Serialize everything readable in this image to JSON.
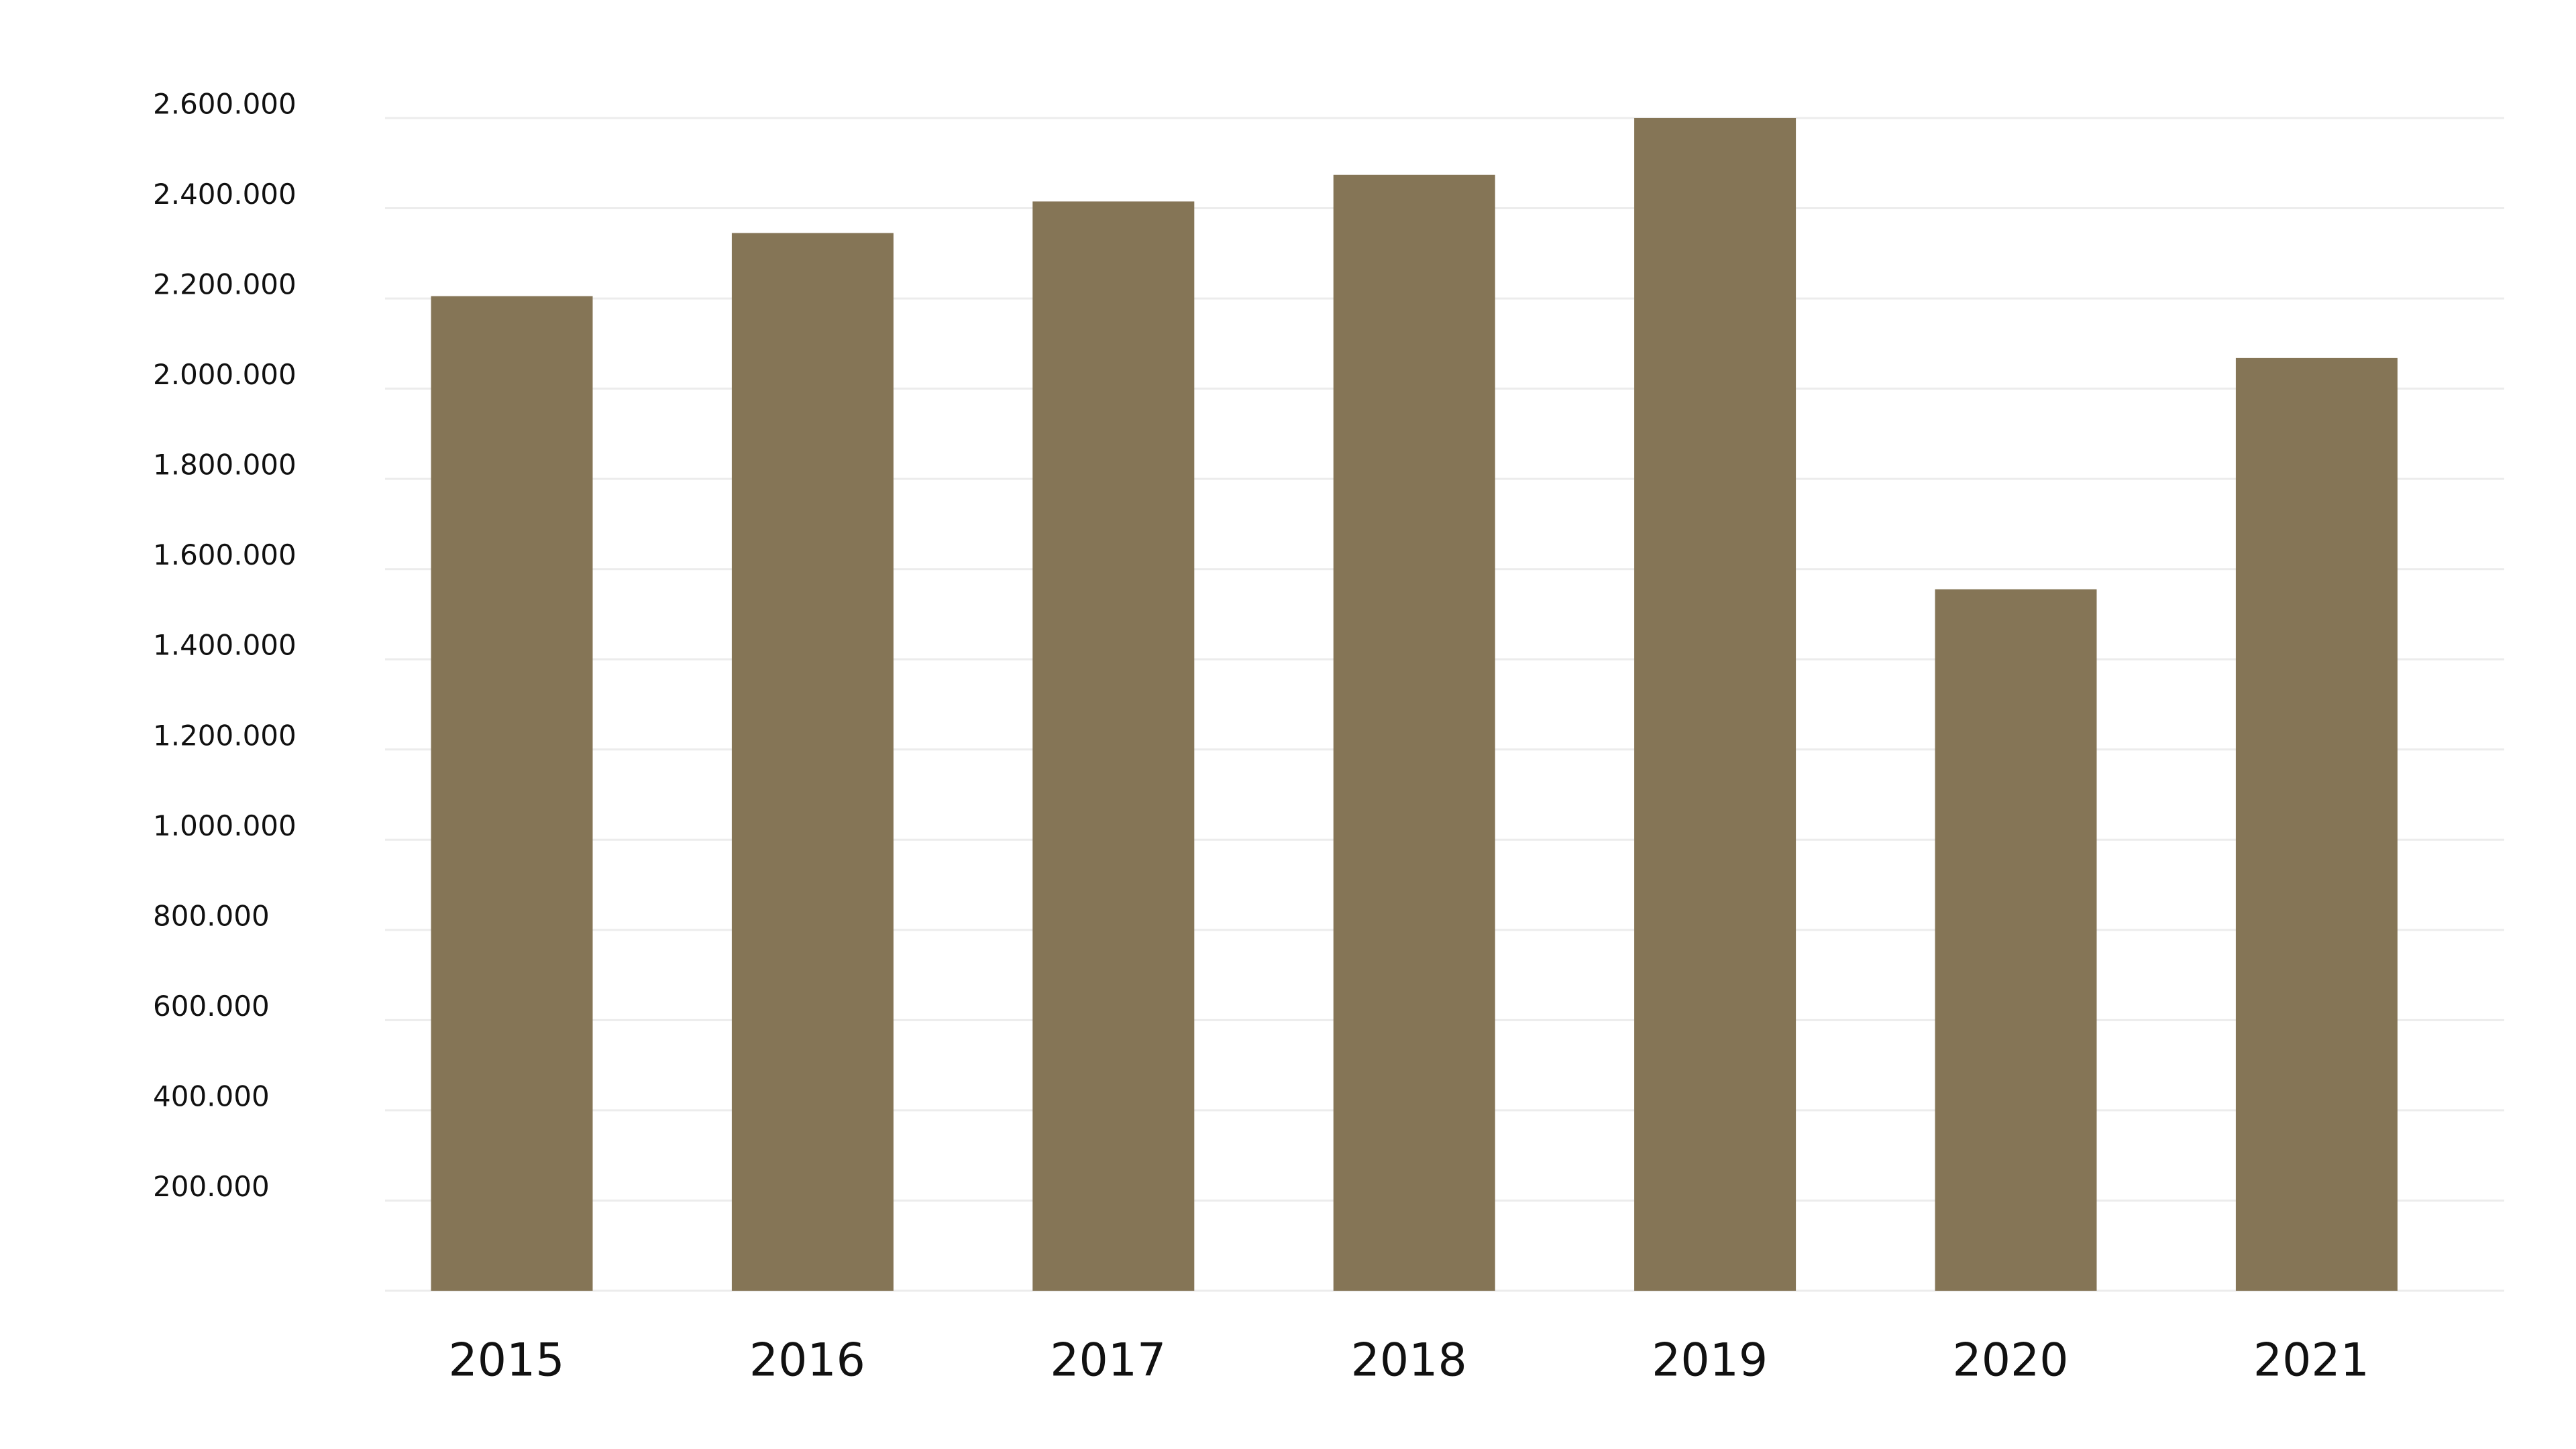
{
  "chart_data": {
    "type": "bar",
    "categories": [
      "2015",
      "2016",
      "2017",
      "2018",
      "2019",
      "2020",
      "2021"
    ],
    "values": [
      2205000,
      2345000,
      2415000,
      2474000,
      2600000,
      1555000,
      2068000
    ],
    "color": "#857556",
    "ylim": [
      0,
      2600000
    ],
    "yticks": [
      {
        "value": 200000,
        "label": "200.000"
      },
      {
        "value": 400000,
        "label": "400.000"
      },
      {
        "value": 600000,
        "label": "600.000"
      },
      {
        "value": 800000,
        "label": "800.000"
      },
      {
        "value": 1000000,
        "label": "1.000.000"
      },
      {
        "value": 1200000,
        "label": "1.200.000"
      },
      {
        "value": 1400000,
        "label": "1.400.000"
      },
      {
        "value": 1600000,
        "label": "1.600.000"
      },
      {
        "value": 1800000,
        "label": "1.800.000"
      },
      {
        "value": 2000000,
        "label": "2.000.000"
      },
      {
        "value": 2200000,
        "label": "2.200.000"
      },
      {
        "value": 2400000,
        "label": "2.400.000"
      },
      {
        "value": 2600000,
        "label": "2.600.000"
      }
    ],
    "grid": true
  }
}
